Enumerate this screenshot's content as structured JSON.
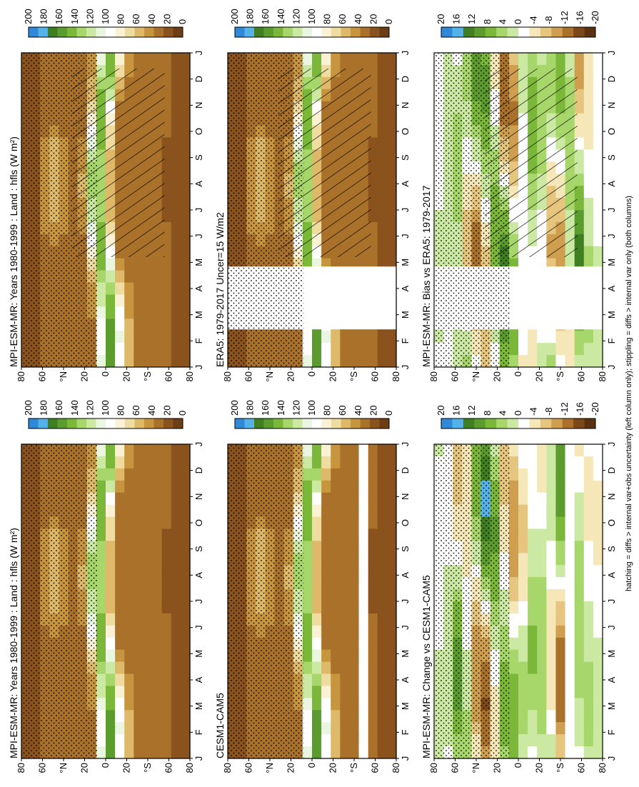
{
  "chart_data": [
    {
      "type": "heatmap",
      "title": "MPI-ESM-MR: Years 1980-1999 : Land : hfls (W m²)",
      "x_ticks": [
        "J",
        "F",
        "M",
        "A",
        "M",
        "J",
        "J",
        "A",
        "S",
        "O",
        "N",
        "D",
        "J"
      ],
      "y_ticks": [
        "80",
        "60",
        "°N",
        "20",
        "0",
        "20",
        "°S",
        "60",
        "80"
      ],
      "colorbar": [
        "200",
        "180",
        "160",
        "140",
        "120",
        "100",
        "80",
        "60",
        "40",
        "20",
        "0"
      ],
      "overlay": "hatching-and-stippling"
    },
    {
      "type": "heatmap",
      "title": "MPI-ESM-MR: Years 1980-1999 : Land : hfls (W m²)",
      "x_ticks": [
        "J",
        "F",
        "M",
        "A",
        "M",
        "J",
        "J",
        "A",
        "S",
        "O",
        "N",
        "D",
        "J"
      ],
      "y_ticks": [
        "80",
        "60",
        "°N",
        "20",
        "0",
        "20",
        "°S",
        "60",
        "80"
      ],
      "colorbar": [
        "200",
        "180",
        "160",
        "140",
        "120",
        "100",
        "80",
        "60",
        "40",
        "20",
        "0"
      ],
      "overlay": "stippling"
    },
    {
      "type": "heatmap",
      "title": "ERA5: 1979-2017 Uncer=15 W/m2",
      "x_ticks": [
        "J",
        "F",
        "M",
        "A",
        "M",
        "J",
        "J",
        "A",
        "S",
        "O",
        "N",
        "D",
        "J"
      ],
      "y_ticks": [
        "80",
        "60",
        "°N",
        "20",
        "0",
        "20",
        "°S",
        "60",
        "80"
      ],
      "colorbar": [
        "200",
        "180",
        "160",
        "140",
        "120",
        "100",
        "80",
        "60",
        "40",
        "20",
        "0"
      ],
      "overlay": "hatching-and-stippling"
    },
    {
      "type": "heatmap",
      "title": "CESM1-CAM5",
      "x_ticks": [
        "J",
        "F",
        "M",
        "A",
        "M",
        "J",
        "J",
        "A",
        "S",
        "O",
        "N",
        "D",
        "J"
      ],
      "y_ticks": [
        "80",
        "60",
        "°N",
        "20",
        "0",
        "20",
        "°S",
        "60",
        "80"
      ],
      "colorbar": [
        "200",
        "180",
        "160",
        "140",
        "120",
        "100",
        "80",
        "60",
        "40",
        "20",
        "0"
      ],
      "overlay": "stippling"
    },
    {
      "type": "heatmap",
      "title": "MPI-ESM-MR: Bias vs ERA5: 1979-2017",
      "x_ticks": [
        "J",
        "F",
        "M",
        "A",
        "M",
        "J",
        "J",
        "A",
        "S",
        "O",
        "N",
        "D",
        "J"
      ],
      "y_ticks": [
        "80",
        "60",
        "°N",
        "20",
        "0",
        "20",
        "°S",
        "60",
        "80"
      ],
      "colorbar": [
        "20",
        "16",
        "12",
        "8",
        "4",
        "0",
        "-4",
        "-8",
        "-12",
        "-16",
        "-20"
      ],
      "overlay": "hatching-and-stippling"
    },
    {
      "type": "heatmap",
      "title": "MPI-ESM-MR: Change vs CESM1-CAM5",
      "x_ticks": [
        "J",
        "F",
        "M",
        "A",
        "M",
        "J",
        "J",
        "A",
        "S",
        "O",
        "N",
        "D",
        "J"
      ],
      "y_ticks": [
        "80",
        "60",
        "°N",
        "20",
        "0",
        "20",
        "°S",
        "60",
        "80"
      ],
      "colorbar": [
        "20",
        "16",
        "12",
        "8",
        "4",
        "0",
        "-4",
        "-8",
        "-12",
        "-16",
        "-20"
      ],
      "overlay": "stippling"
    }
  ],
  "footer": "hatching = diffs > internal var+obs uncertainty (left column only); stippling = diffs > internal var only (both columns)",
  "colors": {
    "abs_scale": [
      "#2f88d8",
      "#55b2e8",
      "#3f7f22",
      "#5c9c2e",
      "#7bb83a",
      "#a7d66a",
      "#cbe9a3",
      "#eaf6df",
      "#ffffff",
      "#fbf2d6",
      "#efdca1",
      "#deb96a",
      "#c8953f",
      "#a9712a",
      "#8a521c",
      "#6d3d14"
    ],
    "diff_scale": [
      "#2f88d8",
      "#55b2e8",
      "#3f7f22",
      "#5c9c2e",
      "#7bb83a",
      "#a7d66a",
      "#cbe9a3",
      "#ffffff",
      "#f6e7b8",
      "#e6c67e",
      "#cf9f4f",
      "#a9712a",
      "#7c4818",
      "#5a3210"
    ]
  }
}
